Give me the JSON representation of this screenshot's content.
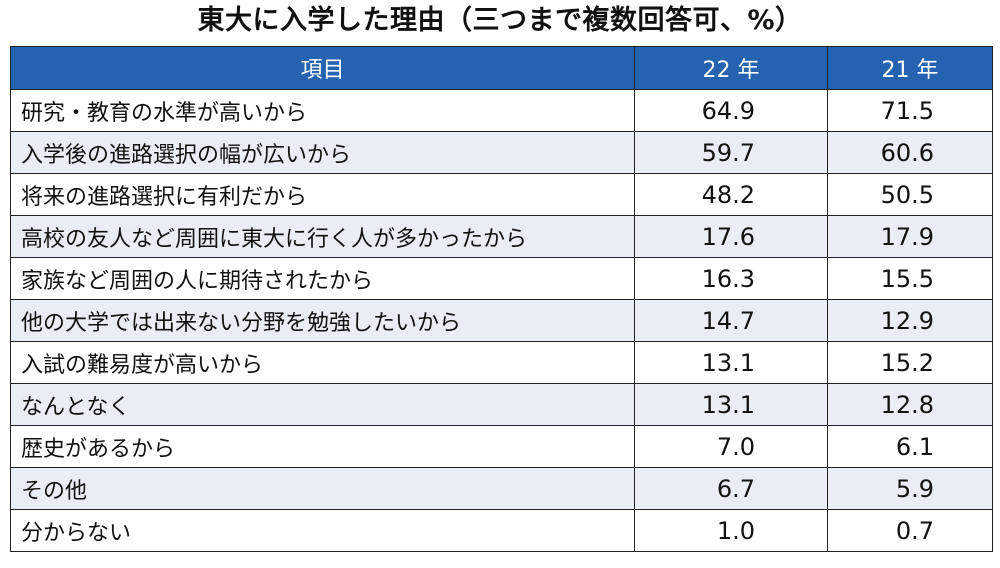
{
  "title": "東大に入学した理由（三つまで複数回答可、%）",
  "headers": {
    "item": "項目",
    "y22": "22 年",
    "y21": "21 年"
  },
  "chart_data": {
    "type": "table",
    "title": "東大に入学した理由（三つまで複数回答可、%）",
    "columns": [
      "項目",
      "22 年",
      "21 年"
    ],
    "rows": [
      {
        "item": "研究・教育の水準が高いから",
        "y22": "64.9",
        "y21": "71.5"
      },
      {
        "item": "入学後の進路選択の幅が広いから",
        "y22": "59.7",
        "y21": "60.6"
      },
      {
        "item": "将来の進路選択に有利だから",
        "y22": "48.2",
        "y21": "50.5"
      },
      {
        "item": "高校の友人など周囲に東大に行く人が多かったから",
        "y22": "17.6",
        "y21": "17.9"
      },
      {
        "item": "家族など周囲の人に期待されたから",
        "y22": "16.3",
        "y21": "15.5"
      },
      {
        "item": "他の大学では出来ない分野を勉強したいから",
        "y22": "14.7",
        "y21": "12.9"
      },
      {
        "item": "入試の難易度が高いから",
        "y22": "13.1",
        "y21": "15.2"
      },
      {
        "item": "なんとなく",
        "y22": "13.1",
        "y21": "12.8"
      },
      {
        "item": "歴史があるから",
        "y22": "7.0",
        "y21": "6.1"
      },
      {
        "item": "その他",
        "y22": "6.7",
        "y21": "5.9"
      },
      {
        "item": "分からない",
        "y22": "1.0",
        "y21": "0.7"
      }
    ]
  },
  "colors": {
    "header_bg": "#2563b0",
    "header_text": "#ffffff",
    "stripe": "#e8edf6"
  }
}
